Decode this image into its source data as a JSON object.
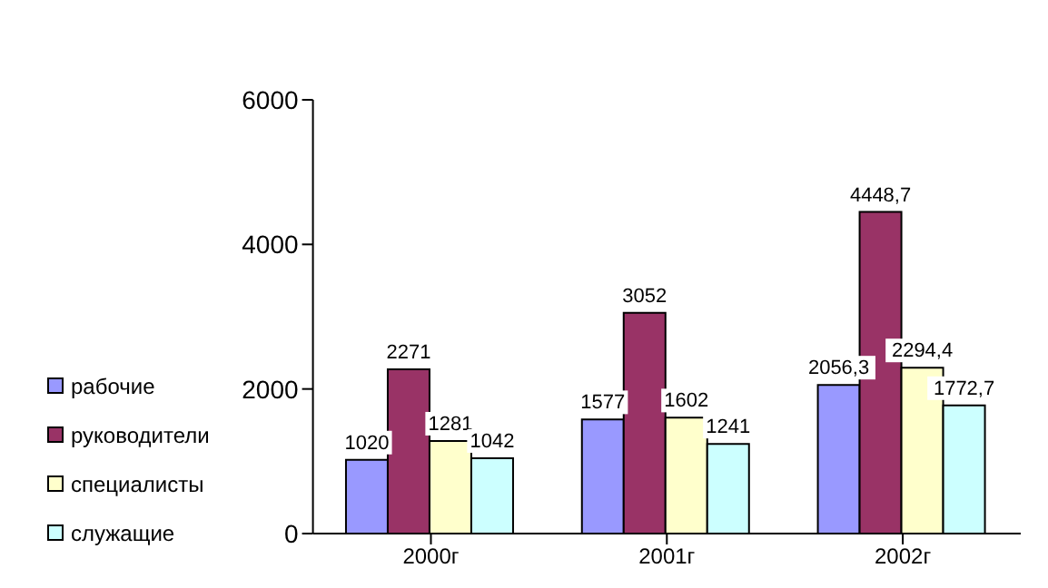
{
  "chart_data": {
    "type": "bar",
    "categories": [
      "2000г",
      "2001г",
      "2002г"
    ],
    "series": [
      {
        "name": "рабочие",
        "color": "#9999ff",
        "values": [
          1020,
          1577,
          2056.3
        ],
        "value_labels": [
          "1020",
          "1577",
          "2056,3"
        ]
      },
      {
        "name": "руководители",
        "color": "#993366",
        "values": [
          2271,
          3052,
          4448.7
        ],
        "value_labels": [
          "2271",
          "3052",
          "4448,7"
        ]
      },
      {
        "name": "специалисты",
        "color": "#ffffcc",
        "values": [
          1281,
          1602,
          2294.4
        ],
        "value_labels": [
          "1281",
          "1602",
          "2294,4"
        ]
      },
      {
        "name": "служащие",
        "color": "#ccffff",
        "values": [
          1042,
          1241,
          1772.7
        ],
        "value_labels": [
          "1042",
          "1241",
          "1772,7"
        ]
      }
    ],
    "ylim": [
      0,
      6000
    ],
    "yticks": [
      0,
      2000,
      4000,
      6000
    ],
    "grid": false,
    "legend": "bottom left"
  }
}
